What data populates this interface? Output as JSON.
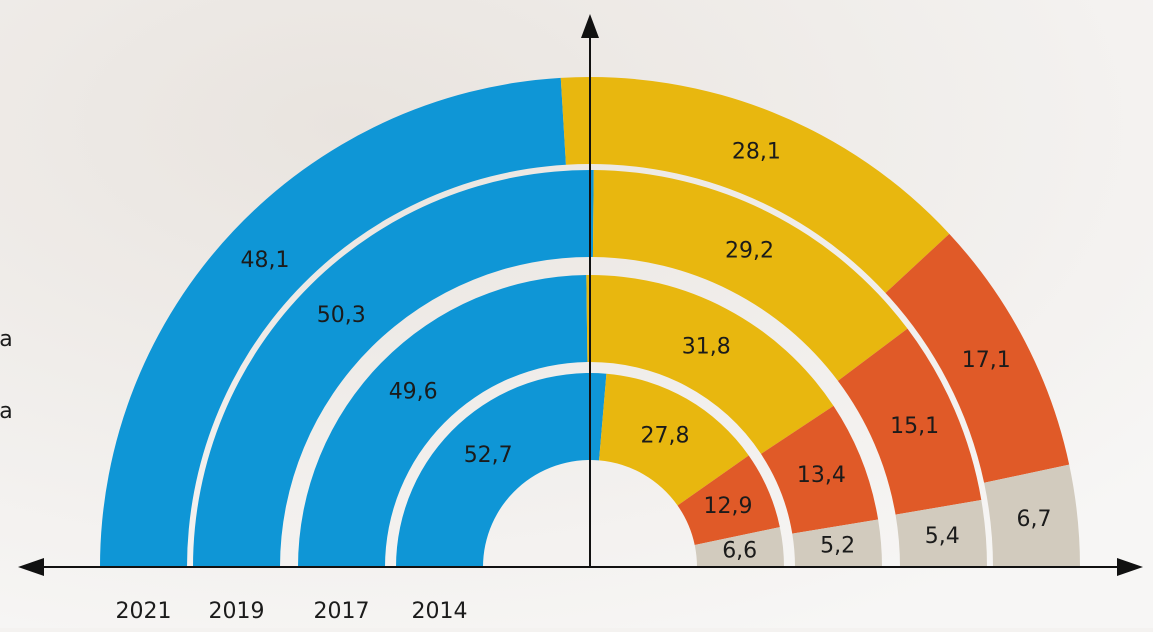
{
  "chart_data": {
    "type": "donut",
    "colors": [
      "#0f96d6",
      "#e8b70f",
      "#e05a28",
      "#d2cbbe"
    ],
    "side_text": [
      "a",
      "a"
    ],
    "rings": [
      {
        "name": "2021",
        "values": [
          48.1,
          28.1,
          17.1,
          6.7
        ],
        "value_labels": [
          "48,1",
          "28,1",
          "17,1",
          "6,7"
        ]
      },
      {
        "name": "2019",
        "values": [
          50.3,
          29.2,
          15.1,
          5.4
        ],
        "value_labels": [
          "50,3",
          "29,2",
          "15,1",
          "5,4"
        ]
      },
      {
        "name": "2017",
        "values": [
          49.6,
          31.8,
          13.4,
          5.2
        ],
        "value_labels": [
          "49,6",
          "31,8",
          "13,4",
          "5,2"
        ]
      },
      {
        "name": "2014",
        "values": [
          52.7,
          27.8,
          12.9,
          6.6
        ],
        "value_labels": [
          "52,7",
          "27,8",
          "12,9",
          "6,6"
        ]
      }
    ]
  }
}
